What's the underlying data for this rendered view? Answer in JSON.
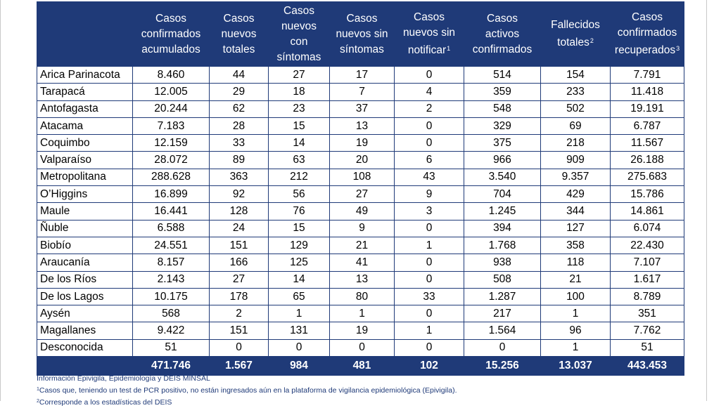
{
  "table": {
    "headers": [
      {
        "label": "",
        "sup": ""
      },
      {
        "label": "Casos\nconfirmados\nacumulados",
        "sup": ""
      },
      {
        "label": "Casos\nnuevos\ntotales",
        "sup": ""
      },
      {
        "label": "Casos\nnuevos\ncon\nsíntomas",
        "sup": ""
      },
      {
        "label": "Casos\nnuevos sin\nsíntomas",
        "sup": ""
      },
      {
        "label": "Casos\nnuevos sin\nnotificar",
        "sup": "1"
      },
      {
        "label": "Casos\nactivos\nconfirmados",
        "sup": ""
      },
      {
        "label": "Fallecidos\ntotales",
        "sup": "2"
      },
      {
        "label": "Casos\nconfirmados\nrecuperados",
        "sup": "3"
      }
    ],
    "rows": [
      [
        "Arica Parinacota",
        "8.460",
        "44",
        "27",
        "17",
        "0",
        "514",
        "154",
        "7.791"
      ],
      [
        "Tarapacá",
        "12.005",
        "29",
        "18",
        "7",
        "4",
        "359",
        "233",
        "11.418"
      ],
      [
        "Antofagasta",
        "20.244",
        "62",
        "23",
        "37",
        "2",
        "548",
        "502",
        "19.191"
      ],
      [
        "Atacama",
        "7.183",
        "28",
        "15",
        "13",
        "0",
        "329",
        "69",
        "6.787"
      ],
      [
        "Coquimbo",
        "12.159",
        "33",
        "14",
        "19",
        "0",
        "375",
        "218",
        "11.567"
      ],
      [
        "Valparaíso",
        "28.072",
        "89",
        "63",
        "20",
        "6",
        "966",
        "909",
        "26.188"
      ],
      [
        "Metropolitana",
        "288.628",
        "363",
        "212",
        "108",
        "43",
        "3.540",
        "9.357",
        "275.683"
      ],
      [
        "O’Higgins",
        "16.899",
        "92",
        "56",
        "27",
        "9",
        "704",
        "429",
        "15.786"
      ],
      [
        "Maule",
        "16.441",
        "128",
        "76",
        "49",
        "3",
        "1.245",
        "344",
        "14.861"
      ],
      [
        "Ñuble",
        "6.588",
        "24",
        "15",
        "9",
        "0",
        "394",
        "127",
        "6.074"
      ],
      [
        "Biobío",
        "24.551",
        "151",
        "129",
        "21",
        "1",
        "1.768",
        "358",
        "22.430"
      ],
      [
        "Araucanía",
        "8.157",
        "166",
        "125",
        "41",
        "0",
        "938",
        "118",
        "7.107"
      ],
      [
        "De los Ríos",
        "2.143",
        "27",
        "14",
        "13",
        "0",
        "508",
        "21",
        "1.617"
      ],
      [
        "De los Lagos",
        "10.175",
        "178",
        "65",
        "80",
        "33",
        "1.287",
        "100",
        "8.789"
      ],
      [
        "Aysén",
        "568",
        "2",
        "1",
        "1",
        "0",
        "217",
        "1",
        "351"
      ],
      [
        "Magallanes",
        "9.422",
        "151",
        "131",
        "19",
        "1",
        "1.564",
        "96",
        "7.762"
      ],
      [
        "Desconocida",
        "51",
        "0",
        "0",
        "0",
        "0",
        "0",
        "1",
        "51"
      ]
    ],
    "totals": [
      "",
      "471.746",
      "1.567",
      "984",
      "481",
      "102",
      "15.256",
      "13.037",
      "443.453"
    ]
  },
  "notes": {
    "line1": "Información Epivigila, Epidemiología y DEIS MINSAL",
    "line2_sup": "1",
    "line2": "Casos que, teniendo un test de PCR positivo, no están ingresados aún en la plataforma de vigilancia epidemiológica (Epivigila).",
    "line3_sup": "2",
    "line3": "Corresponde a los estadísticas del DEIS"
  },
  "colors": {
    "header_bg": "#1f3a78",
    "header_text": "#ffffff",
    "border": "#1f3a78",
    "note_text": "#1f3a78"
  }
}
